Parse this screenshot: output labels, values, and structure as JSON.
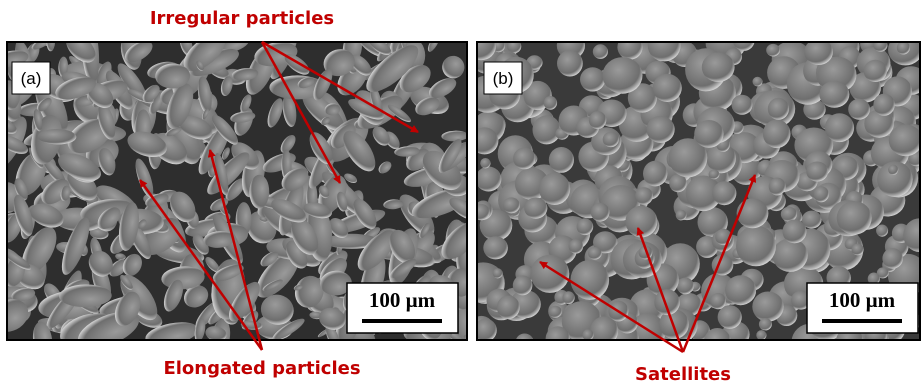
{
  "panels": [
    {
      "label": "(a)",
      "scale_bar": "100 µm"
    },
    {
      "label": "(b)",
      "scale_bar": "100 µm"
    }
  ],
  "annotations": {
    "irregular": "Irregular particles",
    "elongated": "Elongated particles",
    "satellites": "Satellites"
  }
}
